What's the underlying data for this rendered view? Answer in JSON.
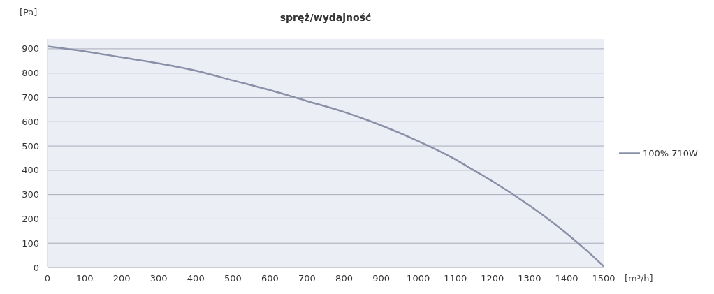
{
  "chart_data": {
    "type": "line",
    "title": "spręż/wydajność",
    "xlabel": "[m³/h]",
    "ylabel": "[Pa]",
    "x": [
      0,
      100,
      200,
      300,
      400,
      500,
      600,
      700,
      800,
      900,
      1000,
      1100,
      1150,
      1200,
      1300,
      1350,
      1400,
      1450,
      1500
    ],
    "series": [
      {
        "name": "100% 710W",
        "color": "#8a90a8",
        "values": [
          910,
          890,
          865,
          840,
          810,
          770,
          730,
          685,
          640,
          585,
          520,
          445,
          400,
          355,
          255,
          200,
          140,
          75,
          5
        ]
      }
    ],
    "xlim": [
      0,
      1500
    ],
    "xticks": [
      0,
      100,
      200,
      300,
      400,
      500,
      600,
      700,
      800,
      900,
      1000,
      1100,
      1200,
      1300,
      1400,
      1500
    ],
    "ylim": [
      0,
      940
    ],
    "yticks": [
      0,
      100,
      200,
      300,
      400,
      500,
      600,
      700,
      800,
      900
    ],
    "grid": "y",
    "legend": "right",
    "marker": "none",
    "line_style": "solid"
  }
}
